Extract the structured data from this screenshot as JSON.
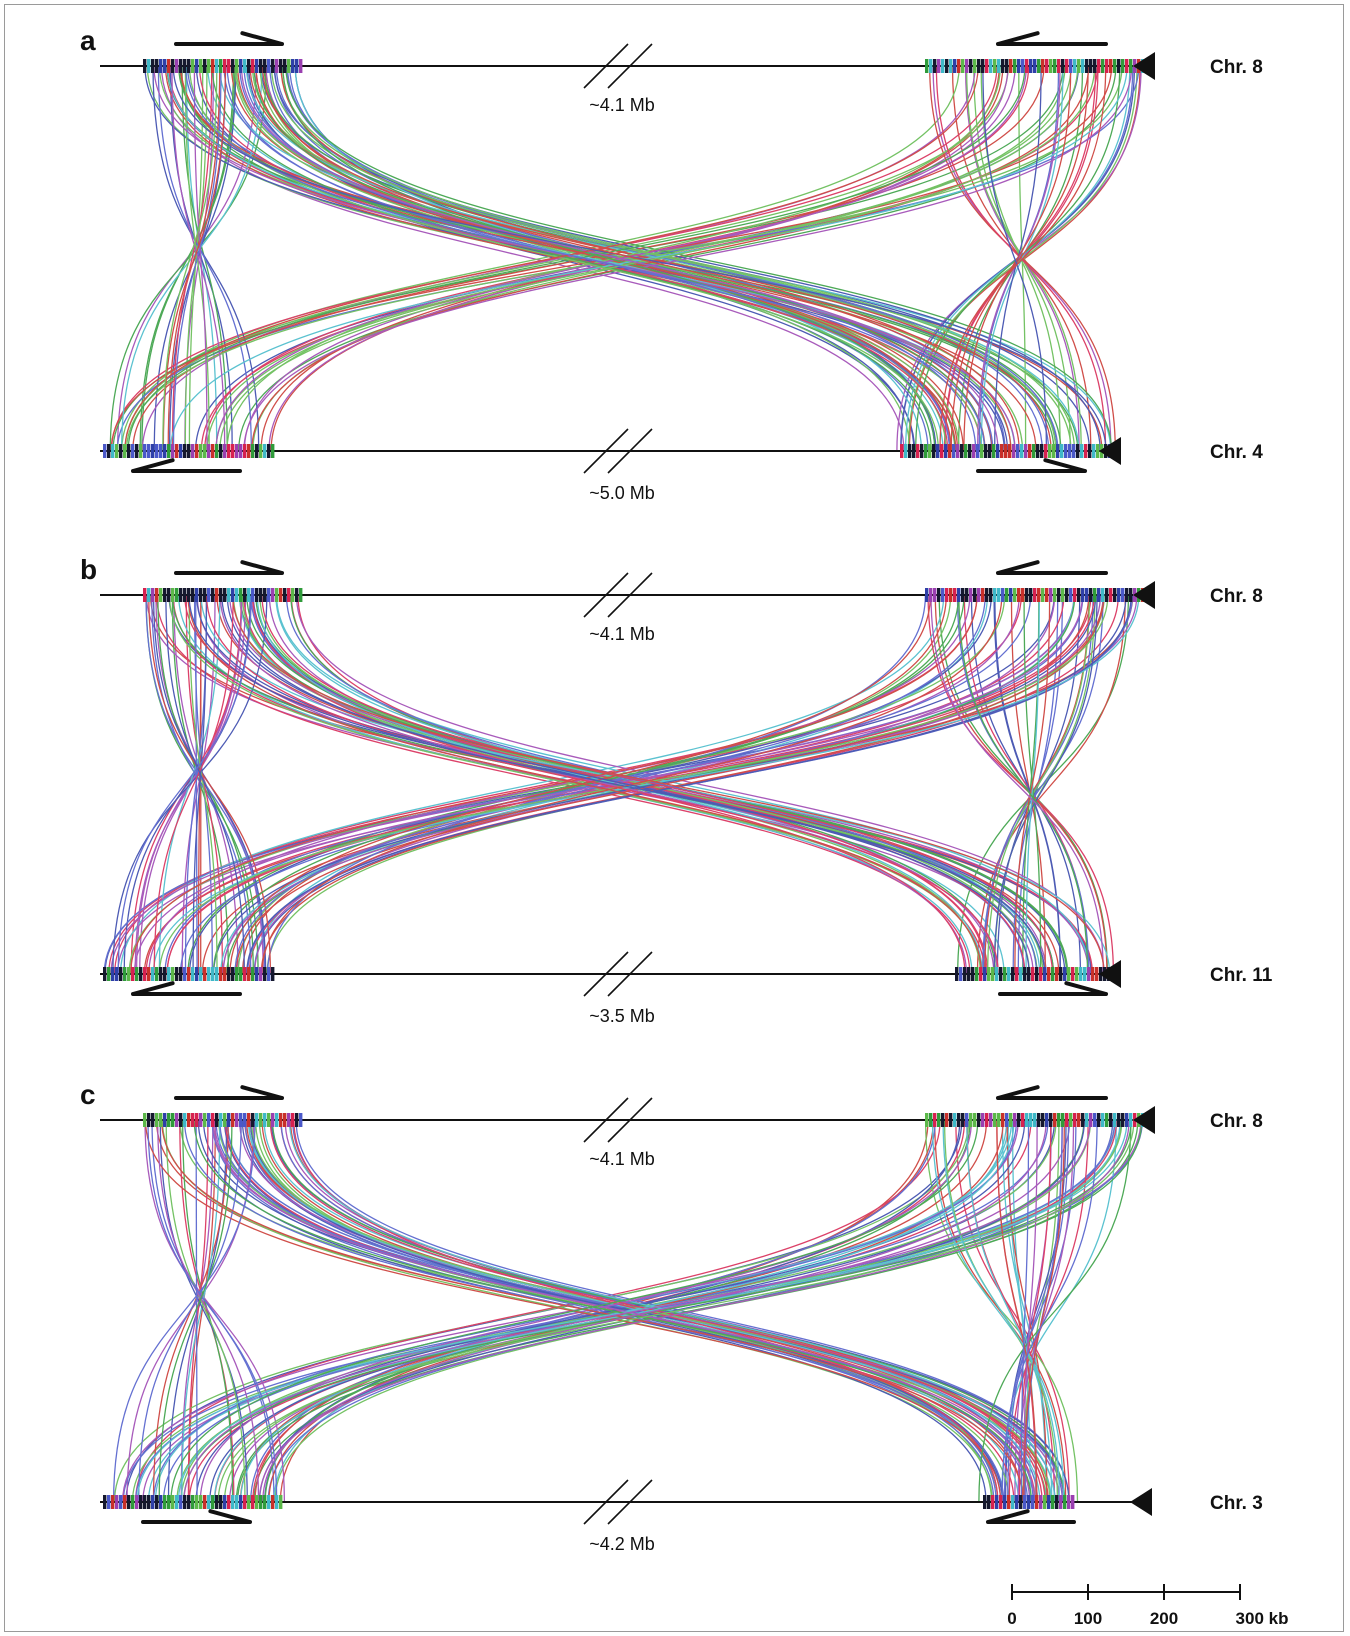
{
  "colors": {
    "links": [
      "#2e3fa8",
      "#d6214f",
      "#2f9b3a",
      "#9a3fb0",
      "#3fb8c8",
      "#c8302a",
      "#4a58c9",
      "#5cb84a"
    ],
    "axis": "#111111",
    "block": "#15182e"
  },
  "panels": [
    {
      "letter": "a",
      "top_chr": "Chr. 8",
      "bottom_chr": "Chr. 4",
      "top_gap": "~4.1 Mb",
      "bottom_gap": "~5.0 Mb",
      "top_arrows": [
        "right",
        "left"
      ],
      "bottom_arrows": [
        "left",
        "right"
      ]
    },
    {
      "letter": "b",
      "top_chr": "Chr. 8",
      "bottom_chr": "Chr. 11",
      "top_gap": "~4.1 Mb",
      "bottom_gap": "~3.5 Mb",
      "top_arrows": [
        "right",
        "left"
      ],
      "bottom_arrows": [
        "left",
        "right"
      ]
    },
    {
      "letter": "c",
      "top_chr": "Chr. 8",
      "bottom_chr": "Chr. 3",
      "top_gap": "~4.1 Mb",
      "bottom_gap": "~4.2 Mb",
      "top_arrows": [
        "right",
        "left"
      ],
      "bottom_arrows": [
        "right",
        "left"
      ]
    }
  ],
  "scale_bar": {
    "ticks": [
      "0",
      "100",
      "200",
      "300 kb"
    ]
  }
}
